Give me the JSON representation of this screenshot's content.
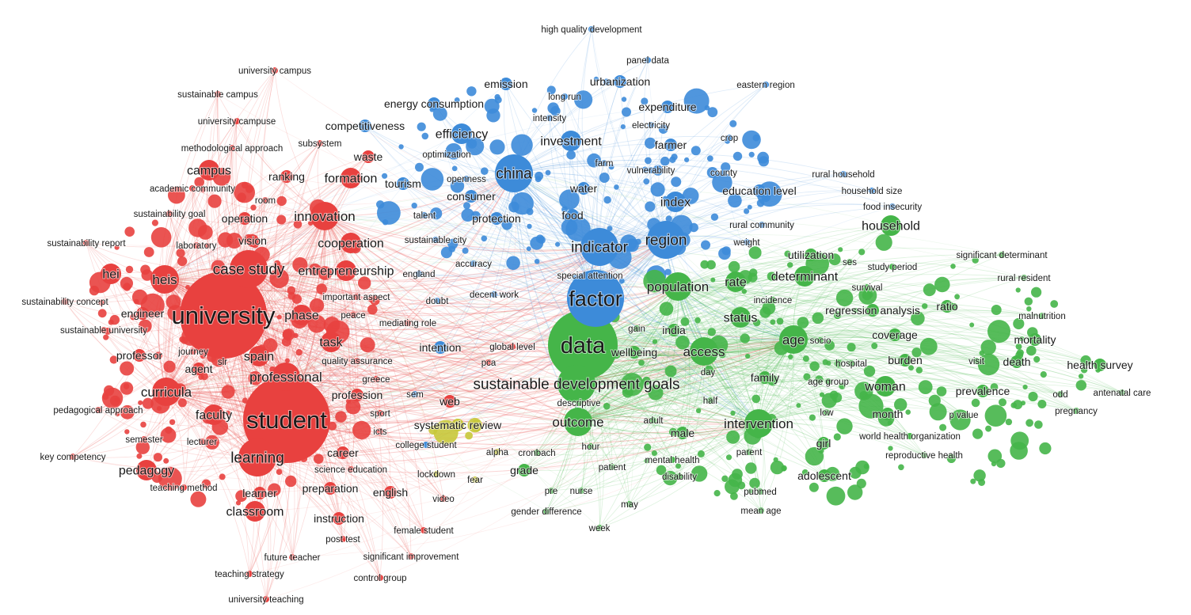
{
  "clusters": [
    {
      "name": "red",
      "color": "#e8413f"
    },
    {
      "name": "blue",
      "color": "#3d8bd9"
    },
    {
      "name": "green",
      "color": "#45b549"
    },
    {
      "name": "yellow",
      "color": "#c8c83a"
    }
  ],
  "terms": [
    {
      "label": "university",
      "cluster": 0,
      "weight": 10
    },
    {
      "label": "student",
      "cluster": 0,
      "weight": 10
    },
    {
      "label": "case study",
      "cluster": 0,
      "weight": 6
    },
    {
      "label": "learning",
      "cluster": 0,
      "weight": 6
    },
    {
      "label": "innovation",
      "cluster": 0,
      "weight": 5
    },
    {
      "label": "heis",
      "cluster": 0,
      "weight": 5
    },
    {
      "label": "hei",
      "cluster": 0,
      "weight": 4
    },
    {
      "label": "curricula",
      "cluster": 0,
      "weight": 5
    },
    {
      "label": "professional",
      "cluster": 0,
      "weight": 5
    },
    {
      "label": "faculty",
      "cluster": 0,
      "weight": 4
    },
    {
      "label": "spain",
      "cluster": 0,
      "weight": 4
    },
    {
      "label": "phase",
      "cluster": 0,
      "weight": 4
    },
    {
      "label": "task",
      "cluster": 0,
      "weight": 4
    },
    {
      "label": "agent",
      "cluster": 0,
      "weight": 3
    },
    {
      "label": "pedagogy",
      "cluster": 0,
      "weight": 4
    },
    {
      "label": "classroom",
      "cluster": 0,
      "weight": 4
    },
    {
      "label": "campus",
      "cluster": 0,
      "weight": 4
    },
    {
      "label": "cooperation",
      "cluster": 0,
      "weight": 4
    },
    {
      "label": "entrepreneurship",
      "cluster": 0,
      "weight": 4
    },
    {
      "label": "vision",
      "cluster": 0,
      "weight": 3
    },
    {
      "label": "operation",
      "cluster": 0,
      "weight": 3
    },
    {
      "label": "formation",
      "cluster": 0,
      "weight": 4
    },
    {
      "label": "waste",
      "cluster": 0,
      "weight": 3
    },
    {
      "label": "ranking",
      "cluster": 0,
      "weight": 3
    },
    {
      "label": "professor",
      "cluster": 0,
      "weight": 3
    },
    {
      "label": "engineer",
      "cluster": 0,
      "weight": 3
    },
    {
      "label": "career",
      "cluster": 0,
      "weight": 3
    },
    {
      "label": "learner",
      "cluster": 0,
      "weight": 3
    },
    {
      "label": "instruction",
      "cluster": 0,
      "weight": 3
    },
    {
      "label": "profession",
      "cluster": 0,
      "weight": 3
    },
    {
      "label": "preparation",
      "cluster": 0,
      "weight": 3
    },
    {
      "label": "english",
      "cluster": 0,
      "weight": 3
    },
    {
      "label": "web",
      "cluster": 0,
      "weight": 3
    },
    {
      "label": "lecturer",
      "cluster": 0,
      "weight": 2
    },
    {
      "label": "semester",
      "cluster": 0,
      "weight": 2
    },
    {
      "label": "journey",
      "cluster": 0,
      "weight": 2
    },
    {
      "label": "slr",
      "cluster": 0,
      "weight": 2
    },
    {
      "label": "peace",
      "cluster": 0,
      "weight": 2
    },
    {
      "label": "laboratory",
      "cluster": 0,
      "weight": 2
    },
    {
      "label": "room",
      "cluster": 0,
      "weight": 2
    },
    {
      "label": "subsystem",
      "cluster": 0,
      "weight": 2
    },
    {
      "label": "university campus",
      "cluster": 0,
      "weight": 2
    },
    {
      "label": "sustainable campus",
      "cluster": 0,
      "weight": 2
    },
    {
      "label": "university campuse",
      "cluster": 0,
      "weight": 2
    },
    {
      "label": "methodological approach",
      "cluster": 0,
      "weight": 2
    },
    {
      "label": "academic community",
      "cluster": 0,
      "weight": 2
    },
    {
      "label": "sustainability goal",
      "cluster": 0,
      "weight": 2
    },
    {
      "label": "sustainability report",
      "cluster": 0,
      "weight": 2
    },
    {
      "label": "sustainability concept",
      "cluster": 0,
      "weight": 2
    },
    {
      "label": "sustainable university",
      "cluster": 0,
      "weight": 2
    },
    {
      "label": "pedagogical approach",
      "cluster": 0,
      "weight": 2
    },
    {
      "label": "key competency",
      "cluster": 0,
      "weight": 2
    },
    {
      "label": "teaching method",
      "cluster": 0,
      "weight": 2
    },
    {
      "label": "science education",
      "cluster": 0,
      "weight": 2
    },
    {
      "label": "quality assurance",
      "cluster": 0,
      "weight": 2
    },
    {
      "label": "important aspect",
      "cluster": 0,
      "weight": 2
    },
    {
      "label": "mediating role",
      "cluster": 0,
      "weight": 2
    },
    {
      "label": "greece",
      "cluster": 0,
      "weight": 2
    },
    {
      "label": "sport",
      "cluster": 0,
      "weight": 2
    },
    {
      "label": "icts",
      "cluster": 0,
      "weight": 2
    },
    {
      "label": "video",
      "cluster": 0,
      "weight": 2
    },
    {
      "label": "female student",
      "cluster": 0,
      "weight": 2
    },
    {
      "label": "post test",
      "cluster": 0,
      "weight": 2
    },
    {
      "label": "future teacher",
      "cluster": 0,
      "weight": 2
    },
    {
      "label": "significant improvement",
      "cluster": 0,
      "weight": 2
    },
    {
      "label": "teaching strategy",
      "cluster": 0,
      "weight": 2
    },
    {
      "label": "control group",
      "cluster": 0,
      "weight": 2
    },
    {
      "label": "university teaching",
      "cluster": 0,
      "weight": 2
    },
    {
      "label": "global level",
      "cluster": 0,
      "weight": 2
    },
    {
      "label": "pca",
      "cluster": 0,
      "weight": 2
    },
    {
      "label": "factor",
      "cluster": 1,
      "weight": 8
    },
    {
      "label": "china",
      "cluster": 1,
      "weight": 6
    },
    {
      "label": "indicator",
      "cluster": 1,
      "weight": 6
    },
    {
      "label": "region",
      "cluster": 1,
      "weight": 6
    },
    {
      "label": "index",
      "cluster": 1,
      "weight": 4
    },
    {
      "label": "investment",
      "cluster": 1,
      "weight": 4
    },
    {
      "label": "efficiency",
      "cluster": 1,
      "weight": 4
    },
    {
      "label": "protection",
      "cluster": 1,
      "weight": 3
    },
    {
      "label": "water",
      "cluster": 1,
      "weight": 3
    },
    {
      "label": "food",
      "cluster": 1,
      "weight": 3
    },
    {
      "label": "tourism",
      "cluster": 1,
      "weight": 3
    },
    {
      "label": "consumer",
      "cluster": 1,
      "weight": 3
    },
    {
      "label": "competitiveness",
      "cluster": 1,
      "weight": 3
    },
    {
      "label": "emission",
      "cluster": 1,
      "weight": 3
    },
    {
      "label": "energy consumption",
      "cluster": 1,
      "weight": 3
    },
    {
      "label": "long run",
      "cluster": 1,
      "weight": 2
    },
    {
      "label": "intensity",
      "cluster": 1,
      "weight": 2
    },
    {
      "label": "optimization",
      "cluster": 1,
      "weight": 2
    },
    {
      "label": "openness",
      "cluster": 1,
      "weight": 2
    },
    {
      "label": "talent",
      "cluster": 1,
      "weight": 2
    },
    {
      "label": "urbanization",
      "cluster": 1,
      "weight": 3
    },
    {
      "label": "panel data",
      "cluster": 1,
      "weight": 2
    },
    {
      "label": "high quality development",
      "cluster": 1,
      "weight": 2
    },
    {
      "label": "expenditure",
      "cluster": 1,
      "weight": 3
    },
    {
      "label": "electricity",
      "cluster": 1,
      "weight": 2
    },
    {
      "label": "farmer",
      "cluster": 1,
      "weight": 3
    },
    {
      "label": "farm",
      "cluster": 1,
      "weight": 2
    },
    {
      "label": "vulnerability",
      "cluster": 1,
      "weight": 2
    },
    {
      "label": "county",
      "cluster": 1,
      "weight": 2
    },
    {
      "label": "crop",
      "cluster": 1,
      "weight": 2
    },
    {
      "label": "eastern region",
      "cluster": 1,
      "weight": 2
    },
    {
      "label": "education level",
      "cluster": 1,
      "weight": 3
    },
    {
      "label": "rural household",
      "cluster": 1,
      "weight": 2
    },
    {
      "label": "household size",
      "cluster": 1,
      "weight": 2
    },
    {
      "label": "food insecurity",
      "cluster": 1,
      "weight": 2
    },
    {
      "label": "rural community",
      "cluster": 1,
      "weight": 2
    },
    {
      "label": "weight",
      "cluster": 1,
      "weight": 2
    },
    {
      "label": "sustainable city",
      "cluster": 1,
      "weight": 2
    },
    {
      "label": "accuracy",
      "cluster": 1,
      "weight": 2
    },
    {
      "label": "england",
      "cluster": 1,
      "weight": 2
    },
    {
      "label": "special attention",
      "cluster": 1,
      "weight": 2
    },
    {
      "label": "decent work",
      "cluster": 1,
      "weight": 2
    },
    {
      "label": "doubt",
      "cluster": 1,
      "weight": 2
    },
    {
      "label": "intention",
      "cluster": 1,
      "weight": 3
    },
    {
      "label": "sem",
      "cluster": 1,
      "weight": 2
    },
    {
      "label": "college student",
      "cluster": 1,
      "weight": 2
    },
    {
      "label": "data",
      "cluster": 2,
      "weight": 9
    },
    {
      "label": "sustainable development goals",
      "cluster": 2,
      "weight": 6
    },
    {
      "label": "outcome",
      "cluster": 2,
      "weight": 5
    },
    {
      "label": "population",
      "cluster": 2,
      "weight": 5
    },
    {
      "label": "access",
      "cluster": 2,
      "weight": 5
    },
    {
      "label": "age",
      "cluster": 2,
      "weight": 5
    },
    {
      "label": "intervention",
      "cluster": 2,
      "weight": 5
    },
    {
      "label": "rate",
      "cluster": 2,
      "weight": 4
    },
    {
      "label": "status",
      "cluster": 2,
      "weight": 4
    },
    {
      "label": "woman",
      "cluster": 2,
      "weight": 4
    },
    {
      "label": "determinant",
      "cluster": 2,
      "weight": 4
    },
    {
      "label": "household",
      "cluster": 2,
      "weight": 4
    },
    {
      "label": "india",
      "cluster": 2,
      "weight": 3
    },
    {
      "label": "family",
      "cluster": 2,
      "weight": 3
    },
    {
      "label": "wellbeing",
      "cluster": 2,
      "weight": 3
    },
    {
      "label": "gain",
      "cluster": 2,
      "weight": 2
    },
    {
      "label": "day",
      "cluster": 2,
      "weight": 2
    },
    {
      "label": "half",
      "cluster": 2,
      "weight": 2
    },
    {
      "label": "descriptive",
      "cluster": 2,
      "weight": 2
    },
    {
      "label": "adult",
      "cluster": 2,
      "weight": 2
    },
    {
      "label": "male",
      "cluster": 2,
      "weight": 3
    },
    {
      "label": "hour",
      "cluster": 2,
      "weight": 2
    },
    {
      "label": "utilization",
      "cluster": 2,
      "weight": 3
    },
    {
      "label": "incidence",
      "cluster": 2,
      "weight": 2
    },
    {
      "label": "ses",
      "cluster": 2,
      "weight": 2
    },
    {
      "label": "study period",
      "cluster": 2,
      "weight": 2
    },
    {
      "label": "survival",
      "cluster": 2,
      "weight": 2
    },
    {
      "label": "regression analysis",
      "cluster": 2,
      "weight": 3
    },
    {
      "label": "ratio",
      "cluster": 2,
      "weight": 3
    },
    {
      "label": "coverage",
      "cluster": 2,
      "weight": 3
    },
    {
      "label": "socio",
      "cluster": 2,
      "weight": 2
    },
    {
      "label": "hospital",
      "cluster": 2,
      "weight": 2
    },
    {
      "label": "burden",
      "cluster": 2,
      "weight": 3
    },
    {
      "label": "visit",
      "cluster": 2,
      "weight": 2
    },
    {
      "label": "death",
      "cluster": 2,
      "weight": 3
    },
    {
      "label": "mortality",
      "cluster": 2,
      "weight": 3
    },
    {
      "label": "malnutrition",
      "cluster": 2,
      "weight": 2
    },
    {
      "label": "health survey",
      "cluster": 2,
      "weight": 3
    },
    {
      "label": "prevalence",
      "cluster": 2,
      "weight": 3
    },
    {
      "label": "odd",
      "cluster": 2,
      "weight": 2
    },
    {
      "label": "antenatal care",
      "cluster": 2,
      "weight": 2
    },
    {
      "label": "pregnancy",
      "cluster": 2,
      "weight": 2
    },
    {
      "label": "p value",
      "cluster": 2,
      "weight": 2
    },
    {
      "label": "month",
      "cluster": 2,
      "weight": 3
    },
    {
      "label": "low",
      "cluster": 2,
      "weight": 2
    },
    {
      "label": "age group",
      "cluster": 2,
      "weight": 2
    },
    {
      "label": "girl",
      "cluster": 2,
      "weight": 3
    },
    {
      "label": "world health organization",
      "cluster": 2,
      "weight": 2
    },
    {
      "label": "reproductive health",
      "cluster": 2,
      "weight": 2
    },
    {
      "label": "parent",
      "cluster": 2,
      "weight": 2
    },
    {
      "label": "adolescent",
      "cluster": 2,
      "weight": 3
    },
    {
      "label": "patient",
      "cluster": 2,
      "weight": 2
    },
    {
      "label": "mental health",
      "cluster": 2,
      "weight": 2
    },
    {
      "label": "disability",
      "cluster": 2,
      "weight": 2
    },
    {
      "label": "pubmed",
      "cluster": 2,
      "weight": 2
    },
    {
      "label": "mean age",
      "cluster": 2,
      "weight": 2
    },
    {
      "label": "grade",
      "cluster": 2,
      "weight": 3
    },
    {
      "label": "pre",
      "cluster": 2,
      "weight": 2
    },
    {
      "label": "nurse",
      "cluster": 2,
      "weight": 2
    },
    {
      "label": "may",
      "cluster": 2,
      "weight": 2
    },
    {
      "label": "gender difference",
      "cluster": 2,
      "weight": 2
    },
    {
      "label": "week",
      "cluster": 2,
      "weight": 2
    },
    {
      "label": "cronbach",
      "cluster": 2,
      "weight": 2
    },
    {
      "label": "rural resident",
      "cluster": 2,
      "weight": 2
    },
    {
      "label": "significant determinant",
      "cluster": 2,
      "weight": 2
    },
    {
      "label": "systematic review",
      "cluster": 3,
      "weight": 3
    },
    {
      "label": "alpha",
      "cluster": 3,
      "weight": 2
    },
    {
      "label": "fear",
      "cluster": 3,
      "weight": 2
    },
    {
      "label": "lockdown",
      "cluster": 3,
      "weight": 2
    }
  ]
}
